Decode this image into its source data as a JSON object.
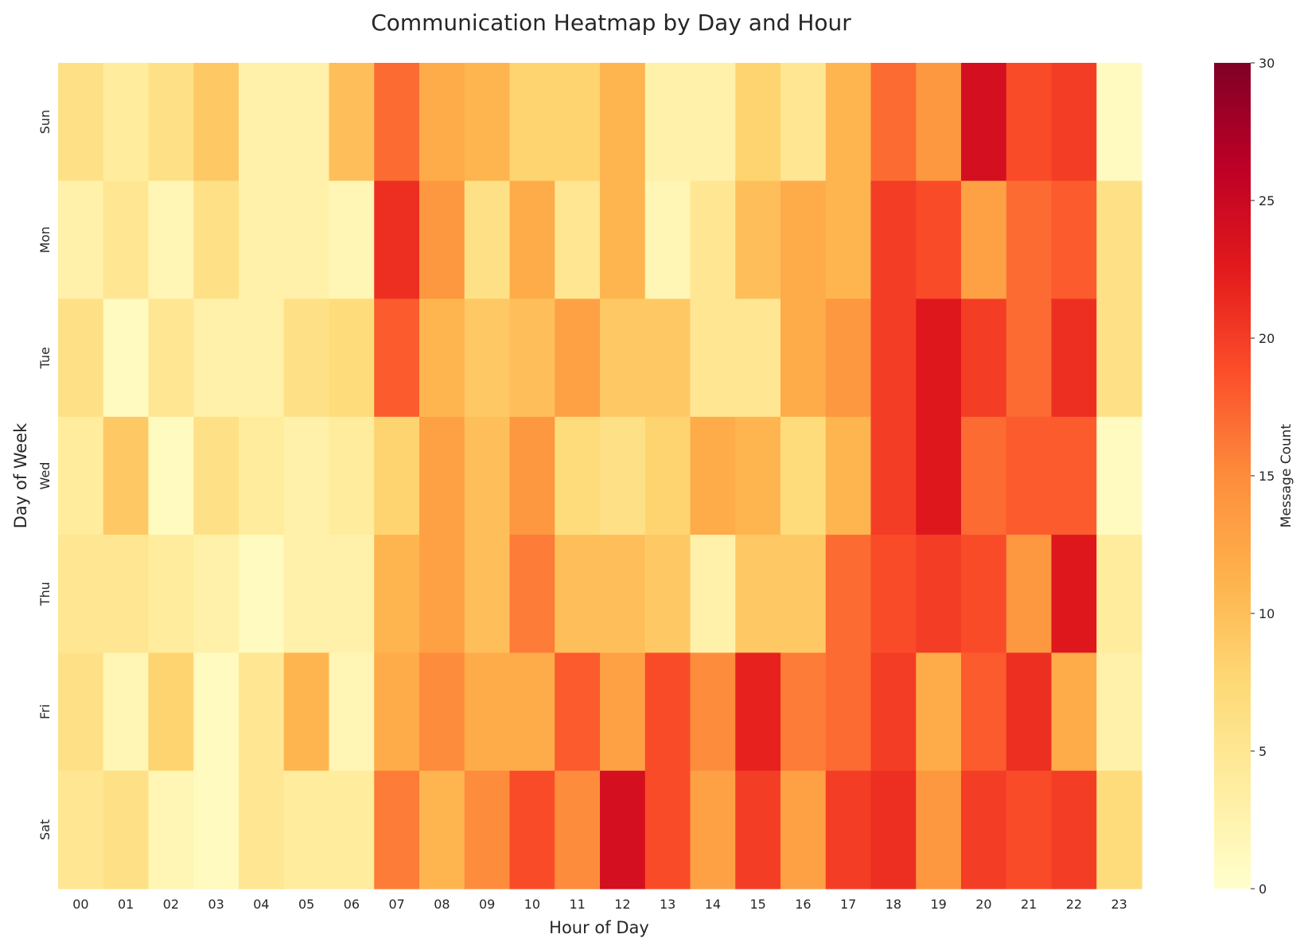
{
  "chart_data": {
    "type": "heatmap",
    "title": "Communication Heatmap by Day and Hour",
    "xlabel": "Hour of Day",
    "ylabel": "Day of Week",
    "x": [
      "00",
      "01",
      "02",
      "03",
      "04",
      "05",
      "06",
      "07",
      "08",
      "09",
      "10",
      "11",
      "12",
      "13",
      "14",
      "15",
      "16",
      "17",
      "18",
      "19",
      "20",
      "21",
      "22",
      "23"
    ],
    "y": [
      "Sun",
      "Mon",
      "Tue",
      "Wed",
      "Thu",
      "Fri",
      "Sat"
    ],
    "values": [
      [
        6,
        4,
        6,
        9,
        3,
        3,
        10,
        17,
        12,
        11,
        8,
        8,
        11,
        3,
        3,
        8,
        5,
        11,
        17,
        14,
        24,
        19,
        20,
        1
      ],
      [
        3,
        5,
        2,
        6,
        3,
        3,
        2,
        21,
        14,
        6,
        12,
        5,
        11,
        2,
        5,
        10,
        12,
        11,
        20,
        19,
        13,
        17,
        18,
        6
      ],
      [
        6,
        1,
        5,
        3,
        3,
        6,
        7,
        18,
        11,
        9,
        10,
        13,
        9,
        9,
        5,
        5,
        12,
        14,
        20,
        23,
        20,
        17,
        21,
        6
      ],
      [
        4,
        9,
        1,
        6,
        4,
        3,
        4,
        8,
        13,
        10,
        14,
        7,
        6,
        8,
        12,
        11,
        7,
        11,
        20,
        23,
        17,
        18,
        18,
        1
      ],
      [
        5,
        5,
        4,
        3,
        1,
        3,
        3,
        11,
        13,
        10,
        16,
        10,
        10,
        9,
        3,
        9,
        9,
        17,
        19,
        20,
        19,
        14,
        23,
        4
      ],
      [
        6,
        2,
        8,
        1,
        5,
        11,
        2,
        12,
        15,
        12,
        12,
        18,
        13,
        19,
        15,
        22,
        16,
        17,
        20,
        12,
        18,
        21,
        12,
        3
      ],
      [
        5,
        6,
        2,
        1,
        5,
        4,
        4,
        16,
        11,
        15,
        19,
        15,
        24,
        19,
        13,
        20,
        13,
        20,
        21,
        14,
        20,
        19,
        20,
        7
      ]
    ],
    "colorbar": {
      "label": "Message Count",
      "min": 0,
      "max": 30,
      "ticks": [
        "0",
        "5",
        "10",
        "15",
        "20",
        "25",
        "30"
      ],
      "colormap": "YlOrRd"
    },
    "grid": false
  }
}
